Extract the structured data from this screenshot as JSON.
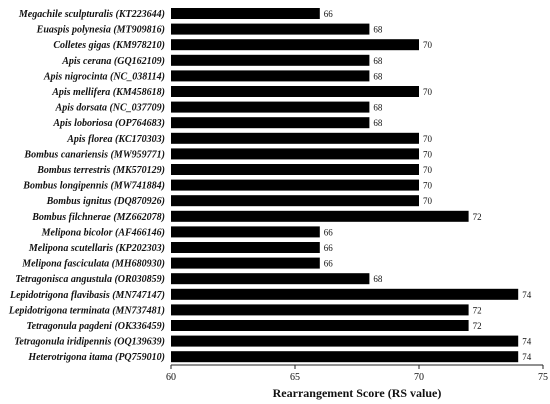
{
  "chart_data": {
    "type": "bar",
    "orientation": "horizontal",
    "categories": [
      "Megachile sculpturalis (KT223644)",
      "Euaspis polynesia (MT909816)",
      "Colletes gigas (KM978210)",
      "Apis cerana (GQ162109)",
      "Apis nigrocinta (NC_038114)",
      "Apis mellifera (KM458618)",
      "Apis dorsata (NC_037709)",
      "Apis loboriosa (OP764683)",
      "Apis florea (KC170303)",
      "Bombus canariensis (MW959771)",
      "Bombus terrestris (MK570129)",
      "Bombus longipennis (MW741884)",
      "Bombus ignitus (DQ870926)",
      "Bombus filchnerae (MZ662078)",
      "Melipona bicolor (AF466146)",
      "Melipona scutellaris (KP202303)",
      "Melipona fasciculata (MH680930)",
      "Tetragonisca angustula (OR030859)",
      "Lepidotrigona flavibasis (MN747147)",
      "Lepidotrigona terminata (MN737481)",
      "Tetragonula pagdeni (OK336459)",
      "Tetragonula iridipennis (OQ139639)",
      "Heterotrigona itama (PQ759010)"
    ],
    "values": [
      66,
      68,
      70,
      68,
      68,
      70,
      68,
      68,
      70,
      70,
      70,
      70,
      70,
      72,
      66,
      66,
      66,
      68,
      74,
      72,
      72,
      74,
      74
    ],
    "data_labels": [
      "66",
      "68",
      "70",
      "68",
      "68",
      "70",
      "68",
      "68",
      "70",
      "70",
      "70",
      "70",
      "70",
      "72",
      "66",
      "66",
      "66",
      "68",
      "74",
      "72",
      "72",
      "74",
      "74"
    ],
    "xlim": [
      60,
      75
    ],
    "xticks": [
      60,
      65,
      70,
      75
    ],
    "xtick_labels": [
      "60",
      "65",
      "70",
      "75"
    ],
    "xlabel": "Rearrangement Score (RS value)",
    "ylabel": "",
    "title": "",
    "grid": false,
    "bar_color": "#000000"
  }
}
